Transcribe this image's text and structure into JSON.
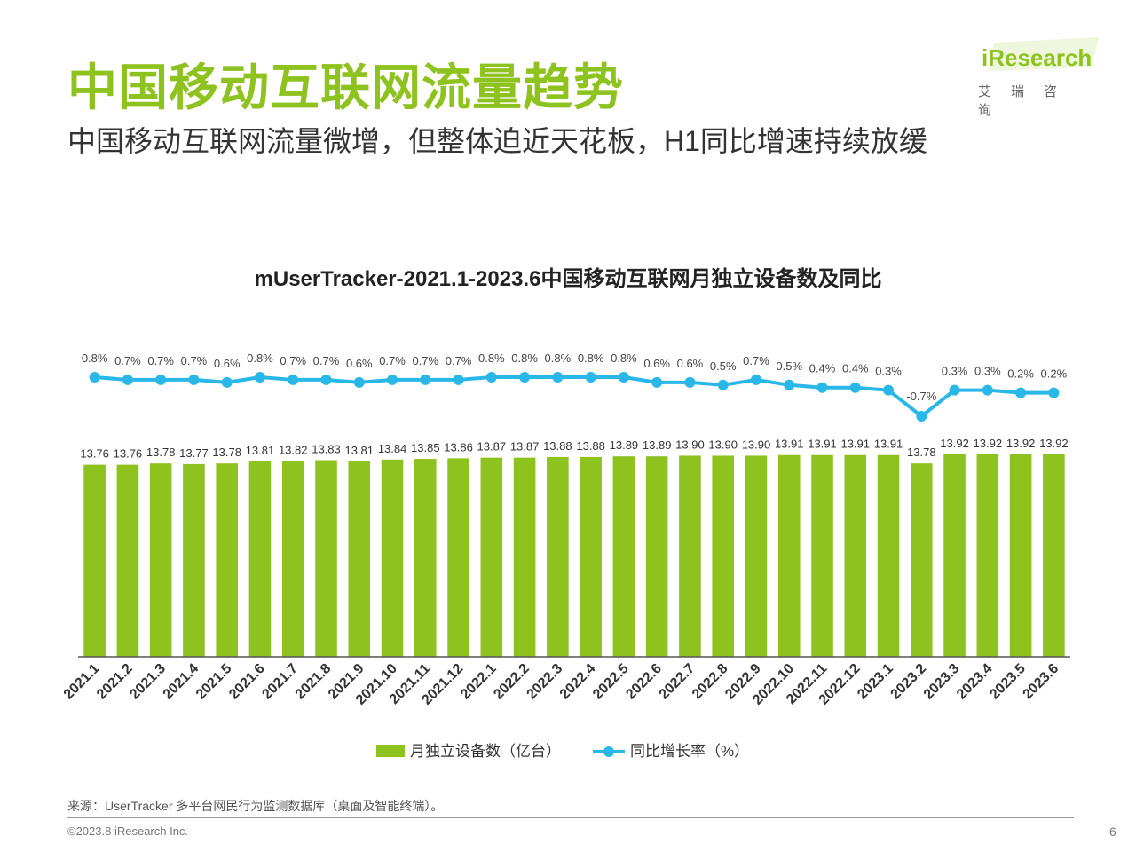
{
  "header": {
    "title": "中国移动互联网流量趋势",
    "subtitle": "中国移动互联网流量微增，但整体迫近天花板，H1同比增速持续放缓"
  },
  "logo": {
    "text": "iResearch",
    "cn": "艾瑞咨询"
  },
  "footer": {
    "source": "来源：UserTracker 多平台网民行为监测数据库（桌面及智能终端）。",
    "copyright": "©2023.8 iResearch Inc.",
    "page": "6"
  },
  "colors": {
    "bar": "#8DC21F",
    "line": "#29B7E8",
    "title": "#8DC21F"
  },
  "chart_data": {
    "type": "bar",
    "title": "mUserTracker-2021.1-2023.6中国移动互联网月独立设备数及同比",
    "categories": [
      "2021.1",
      "2021.2",
      "2021.3",
      "2021.4",
      "2021.5",
      "2021.6",
      "2021.7",
      "2021.8",
      "2021.9",
      "2021.10",
      "2021.11",
      "2021.12",
      "2022.1",
      "2022.2",
      "2022.3",
      "2022.4",
      "2022.5",
      "2022.6",
      "2022.7",
      "2022.8",
      "2022.9",
      "2022.10",
      "2022.11",
      "2022.12",
      "2023.1",
      "2023.2",
      "2023.3",
      "2023.4",
      "2023.5",
      "2023.6"
    ],
    "series": [
      {
        "name": "月独立设备数（亿台）",
        "type": "bar",
        "values": [
          13.76,
          13.76,
          13.78,
          13.77,
          13.78,
          13.81,
          13.82,
          13.83,
          13.81,
          13.84,
          13.85,
          13.86,
          13.87,
          13.87,
          13.88,
          13.88,
          13.89,
          13.89,
          13.9,
          13.9,
          13.9,
          13.91,
          13.91,
          13.91,
          13.91,
          13.78,
          13.92,
          13.92,
          13.92,
          13.92
        ],
        "labels": [
          "13.76",
          "13.76",
          "13.78",
          "13.77",
          "13.78",
          "13.81",
          "13.82",
          "13.83",
          "13.81",
          "13.84",
          "13.85",
          "13.86",
          "13.87",
          "13.87",
          "13.88",
          "13.88",
          "13.89",
          "13.89",
          "13.90",
          "13.90",
          "13.90",
          "13.91",
          "13.91",
          "13.91",
          "13.91",
          "13.78",
          "13.92",
          "13.92",
          "13.92",
          "13.92"
        ]
      },
      {
        "name": "同比增长率（%）",
        "type": "line",
        "values": [
          0.8,
          0.7,
          0.7,
          0.7,
          0.6,
          0.8,
          0.7,
          0.7,
          0.6,
          0.7,
          0.7,
          0.7,
          0.8,
          0.8,
          0.8,
          0.8,
          0.8,
          0.6,
          0.6,
          0.5,
          0.7,
          0.5,
          0.4,
          0.4,
          0.3,
          -0.7,
          0.3,
          0.3,
          0.2,
          0.2
        ],
        "labels": [
          "0.8%",
          "0.7%",
          "0.7%",
          "0.7%",
          "0.6%",
          "0.8%",
          "0.7%",
          "0.7%",
          "0.6%",
          "0.7%",
          "0.7%",
          "0.7%",
          "0.8%",
          "0.8%",
          "0.8%",
          "0.8%",
          "0.8%",
          "0.6%",
          "0.6%",
          "0.5%",
          "0.7%",
          "0.5%",
          "0.4%",
          "0.4%",
          "0.3%",
          "-0.7%",
          "0.3%",
          "0.3%",
          "0.2%",
          "0.2%"
        ]
      }
    ],
    "legend": "bottom",
    "grid": false
  }
}
